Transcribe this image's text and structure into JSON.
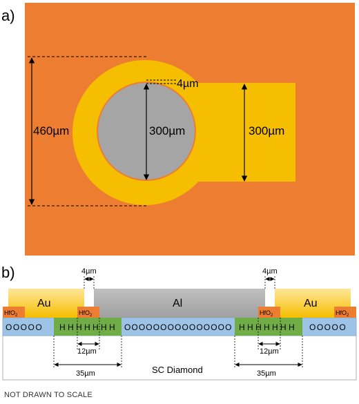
{
  "panel_a": {
    "label": "a)",
    "dim_outer": "460µm",
    "dim_gap": "4µm",
    "dim_inner": "300µm",
    "dim_pad": "300µm"
  },
  "panel_b": {
    "label": "b)",
    "au_left": "Au",
    "al_center": "Al",
    "au_right": "Au",
    "hfo2_text": "HfO",
    "hfo2_sub": "2",
    "gap_left": "4µm",
    "gap_right": "4µm",
    "width_12_left": "12µm",
    "width_12_right": "12µm",
    "width_35_left": "35µm",
    "width_35_right": "35µm",
    "substrate": "SC Diamond",
    "circles_a": "OOOOO",
    "circles_b": "OOOOOOOOOOOOOOO",
    "circles_c": "OOOOO",
    "h_left": "H H H H H H H",
    "h_right": "H H H H H H H"
  },
  "footer": "NOT DRAWN TO SCALE",
  "colors": {
    "orange_bg": "#ED7D31",
    "gold": "#F5BE00",
    "gray": "#A5A5A5",
    "blue": "#9DC3E6",
    "green": "#70AD47",
    "au_top": "#FFD966",
    "hfo2": "#ED7D31"
  }
}
